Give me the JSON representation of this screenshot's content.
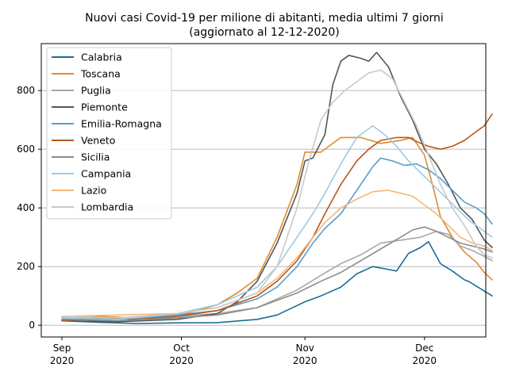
{
  "chart_data": {
    "type": "line",
    "title_lines": [
      "Nuovi casi Covid-19 per milione di abitanti, media ultimi 7 giorni",
      "(aggiornato al 12-12-2020)"
    ],
    "xlabel": "",
    "ylabel": "",
    "x_range": [
      "2020-09-01",
      "2020-12-12"
    ],
    "x_ticks": [
      {
        "date": "2020-09-01",
        "line1": "Sep",
        "line2": "2020"
      },
      {
        "date": "2020-10-01",
        "line1": "Oct",
        "line2": "2020"
      },
      {
        "date": "2020-11-01",
        "line1": "Nov",
        "line2": "2020"
      },
      {
        "date": "2020-12-01",
        "line1": "Dec",
        "line2": "2020"
      }
    ],
    "ylim": [
      -40,
      960
    ],
    "y_ticks": [
      0,
      200,
      400,
      600,
      800
    ],
    "grid": "horizontal",
    "legend_position": "top-left",
    "series": [
      {
        "name": "Calabria",
        "color": "#1a6e96",
        "points": [
          [
            "2020-09-01",
            15
          ],
          [
            "2020-09-10",
            10
          ],
          [
            "2020-09-20",
            6
          ],
          [
            "2020-09-30",
            8
          ],
          [
            "2020-10-10",
            9
          ],
          [
            "2020-10-20",
            20
          ],
          [
            "2020-10-25",
            35
          ],
          [
            "2020-11-01",
            80
          ],
          [
            "2020-11-05",
            100
          ],
          [
            "2020-11-10",
            130
          ],
          [
            "2020-11-14",
            175
          ],
          [
            "2020-11-18",
            200
          ],
          [
            "2020-11-22",
            190
          ],
          [
            "2020-11-24",
            185
          ],
          [
            "2020-11-27",
            245
          ],
          [
            "2020-11-30",
            265
          ],
          [
            "2020-12-02",
            285
          ],
          [
            "2020-12-03",
            260
          ],
          [
            "2020-12-05",
            210
          ],
          [
            "2020-12-08",
            185
          ],
          [
            "2020-12-11",
            155
          ],
          [
            "2020-12-12",
            150
          ],
          [
            "2020-12-15",
            125
          ],
          [
            "2020-12-18",
            100
          ]
        ]
      },
      {
        "name": "Toscana",
        "color": "#e08b2e",
        "points": [
          [
            "2020-09-01",
            20
          ],
          [
            "2020-09-10",
            30
          ],
          [
            "2020-09-20",
            25
          ],
          [
            "2020-09-30",
            35
          ],
          [
            "2020-10-05",
            50
          ],
          [
            "2020-10-10",
            70
          ],
          [
            "2020-10-15",
            110
          ],
          [
            "2020-10-20",
            160
          ],
          [
            "2020-10-25",
            300
          ],
          [
            "2020-10-30",
            480
          ],
          [
            "2020-11-01",
            590
          ],
          [
            "2020-11-05",
            590
          ],
          [
            "2020-11-10",
            640
          ],
          [
            "2020-11-15",
            640
          ],
          [
            "2020-11-20",
            620
          ],
          [
            "2020-11-25",
            630
          ],
          [
            "2020-11-28",
            640
          ],
          [
            "2020-12-01",
            580
          ],
          [
            "2020-12-03",
            480
          ],
          [
            "2020-12-05",
            370
          ],
          [
            "2020-12-08",
            300
          ],
          [
            "2020-12-11",
            250
          ],
          [
            "2020-12-14",
            215
          ],
          [
            "2020-12-16",
            180
          ],
          [
            "2020-12-18",
            155
          ]
        ]
      },
      {
        "name": "Puglia",
        "color": "#a8a8a8",
        "points": [
          [
            "2020-09-01",
            25
          ],
          [
            "2020-09-15",
            20
          ],
          [
            "2020-09-30",
            30
          ],
          [
            "2020-10-10",
            40
          ],
          [
            "2020-10-20",
            60
          ],
          [
            "2020-10-30",
            120
          ],
          [
            "2020-11-05",
            170
          ],
          [
            "2020-11-10",
            210
          ],
          [
            "2020-11-15",
            240
          ],
          [
            "2020-11-20",
            280
          ],
          [
            "2020-11-25",
            290
          ],
          [
            "2020-11-30",
            300
          ],
          [
            "2020-12-04",
            320
          ],
          [
            "2020-12-07",
            310
          ],
          [
            "2020-12-10",
            270
          ],
          [
            "2020-12-13",
            255
          ],
          [
            "2020-12-16",
            235
          ],
          [
            "2020-12-18",
            220
          ]
        ]
      },
      {
        "name": "Piemonte",
        "color": "#555555",
        "points": [
          [
            "2020-09-01",
            15
          ],
          [
            "2020-09-15",
            12
          ],
          [
            "2020-09-30",
            20
          ],
          [
            "2020-10-05",
            30
          ],
          [
            "2020-10-10",
            40
          ],
          [
            "2020-10-15",
            80
          ],
          [
            "2020-10-20",
            150
          ],
          [
            "2020-10-25",
            280
          ],
          [
            "2020-10-30",
            450
          ],
          [
            "2020-11-01",
            560
          ],
          [
            "2020-11-03",
            570
          ],
          [
            "2020-11-06",
            650
          ],
          [
            "2020-11-08",
            820
          ],
          [
            "2020-11-10",
            900
          ],
          [
            "2020-11-12",
            920
          ],
          [
            "2020-11-15",
            910
          ],
          [
            "2020-11-17",
            900
          ],
          [
            "2020-11-19",
            930
          ],
          [
            "2020-11-22",
            880
          ],
          [
            "2020-11-25",
            780
          ],
          [
            "2020-11-28",
            700
          ],
          [
            "2020-12-01",
            600
          ],
          [
            "2020-12-04",
            550
          ],
          [
            "2020-12-07",
            480
          ],
          [
            "2020-12-10",
            400
          ],
          [
            "2020-12-13",
            360
          ],
          [
            "2020-12-16",
            290
          ],
          [
            "2020-12-18",
            265
          ]
        ]
      },
      {
        "name": "Emilia-Romagna",
        "color": "#5a9ec9",
        "points": [
          [
            "2020-09-01",
            20
          ],
          [
            "2020-09-15",
            20
          ],
          [
            "2020-09-30",
            35
          ],
          [
            "2020-10-10",
            50
          ],
          [
            "2020-10-20",
            90
          ],
          [
            "2020-10-25",
            130
          ],
          [
            "2020-10-30",
            200
          ],
          [
            "2020-11-03",
            280
          ],
          [
            "2020-11-06",
            330
          ],
          [
            "2020-11-10",
            380
          ],
          [
            "2020-11-14",
            460
          ],
          [
            "2020-11-18",
            540
          ],
          [
            "2020-11-20",
            570
          ],
          [
            "2020-11-23",
            560
          ],
          [
            "2020-11-26",
            545
          ],
          [
            "2020-11-29",
            550
          ],
          [
            "2020-12-02",
            530
          ],
          [
            "2020-12-05",
            500
          ],
          [
            "2020-12-08",
            460
          ],
          [
            "2020-12-11",
            420
          ],
          [
            "2020-12-14",
            400
          ],
          [
            "2020-12-16",
            380
          ],
          [
            "2020-12-18",
            345
          ]
        ]
      },
      {
        "name": "Veneto",
        "color": "#b8571a",
        "points": [
          [
            "2020-09-01",
            15
          ],
          [
            "2020-09-10",
            25
          ],
          [
            "2020-09-20",
            20
          ],
          [
            "2020-09-30",
            30
          ],
          [
            "2020-10-10",
            50
          ],
          [
            "2020-10-20",
            100
          ],
          [
            "2020-10-25",
            150
          ],
          [
            "2020-10-30",
            220
          ],
          [
            "2020-11-03",
            300
          ],
          [
            "2020-11-06",
            380
          ],
          [
            "2020-11-10",
            480
          ],
          [
            "2020-11-14",
            560
          ],
          [
            "2020-11-17",
            600
          ],
          [
            "2020-11-20",
            630
          ],
          [
            "2020-11-24",
            640
          ],
          [
            "2020-11-27",
            640
          ],
          [
            "2020-11-30",
            620
          ],
          [
            "2020-12-02",
            610
          ],
          [
            "2020-12-05",
            600
          ],
          [
            "2020-12-08",
            610
          ],
          [
            "2020-12-11",
            630
          ],
          [
            "2020-12-14",
            660
          ],
          [
            "2020-12-16",
            680
          ],
          [
            "2020-12-18",
            720
          ]
        ]
      },
      {
        "name": "Sicilia",
        "color": "#8c8c8c",
        "points": [
          [
            "2020-09-01",
            20
          ],
          [
            "2020-09-15",
            15
          ],
          [
            "2020-09-30",
            25
          ],
          [
            "2020-10-10",
            35
          ],
          [
            "2020-10-20",
            60
          ],
          [
            "2020-10-30",
            110
          ],
          [
            "2020-11-05",
            150
          ],
          [
            "2020-11-10",
            180
          ],
          [
            "2020-11-15",
            220
          ],
          [
            "2020-11-20",
            260
          ],
          [
            "2020-11-25",
            300
          ],
          [
            "2020-11-28",
            325
          ],
          [
            "2020-12-01",
            335
          ],
          [
            "2020-12-04",
            320
          ],
          [
            "2020-12-07",
            300
          ],
          [
            "2020-12-10",
            280
          ],
          [
            "2020-12-13",
            270
          ],
          [
            "2020-12-16",
            260
          ],
          [
            "2020-12-18",
            250
          ]
        ]
      },
      {
        "name": "Campania",
        "color": "#9ecae1",
        "points": [
          [
            "2020-09-01",
            25
          ],
          [
            "2020-09-15",
            20
          ],
          [
            "2020-09-30",
            40
          ],
          [
            "2020-10-10",
            70
          ],
          [
            "2020-10-20",
            130
          ],
          [
            "2020-10-25",
            200
          ],
          [
            "2020-10-30",
            300
          ],
          [
            "2020-11-03",
            380
          ],
          [
            "2020-11-06",
            450
          ],
          [
            "2020-11-10",
            550
          ],
          [
            "2020-11-14",
            640
          ],
          [
            "2020-11-18",
            680
          ],
          [
            "2020-11-21",
            650
          ],
          [
            "2020-11-24",
            610
          ],
          [
            "2020-11-27",
            560
          ],
          [
            "2020-11-30",
            520
          ],
          [
            "2020-12-03",
            480
          ],
          [
            "2020-12-06",
            440
          ],
          [
            "2020-12-09",
            400
          ],
          [
            "2020-12-12",
            360
          ],
          [
            "2020-12-15",
            330
          ],
          [
            "2020-12-18",
            300
          ]
        ]
      },
      {
        "name": "Lazio",
        "color": "#f2b77a",
        "points": [
          [
            "2020-09-01",
            30
          ],
          [
            "2020-09-15",
            35
          ],
          [
            "2020-09-30",
            40
          ],
          [
            "2020-10-10",
            60
          ],
          [
            "2020-10-20",
            110
          ],
          [
            "2020-10-25",
            160
          ],
          [
            "2020-10-30",
            230
          ],
          [
            "2020-11-03",
            300
          ],
          [
            "2020-11-06",
            350
          ],
          [
            "2020-11-10",
            400
          ],
          [
            "2020-11-14",
            430
          ],
          [
            "2020-11-18",
            455
          ],
          [
            "2020-11-22",
            460
          ],
          [
            "2020-11-25",
            450
          ],
          [
            "2020-11-28",
            440
          ],
          [
            "2020-12-01",
            410
          ],
          [
            "2020-12-04",
            380
          ],
          [
            "2020-12-07",
            340
          ],
          [
            "2020-12-10",
            300
          ],
          [
            "2020-12-13",
            280
          ],
          [
            "2020-12-16",
            270
          ],
          [
            "2020-12-18",
            255
          ]
        ]
      },
      {
        "name": "Lombardia",
        "color": "#c9c9c9",
        "points": [
          [
            "2020-09-01",
            30
          ],
          [
            "2020-09-15",
            25
          ],
          [
            "2020-09-30",
            40
          ],
          [
            "2020-10-10",
            60
          ],
          [
            "2020-10-20",
            110
          ],
          [
            "2020-10-25",
            200
          ],
          [
            "2020-10-30",
            400
          ],
          [
            "2020-11-02",
            560
          ],
          [
            "2020-11-05",
            700
          ],
          [
            "2020-11-08",
            760
          ],
          [
            "2020-11-11",
            800
          ],
          [
            "2020-11-14",
            830
          ],
          [
            "2020-11-17",
            860
          ],
          [
            "2020-11-20",
            870
          ],
          [
            "2020-11-23",
            840
          ],
          [
            "2020-11-26",
            760
          ],
          [
            "2020-11-29",
            680
          ],
          [
            "2020-12-02",
            580
          ],
          [
            "2020-12-05",
            480
          ],
          [
            "2020-12-08",
            400
          ],
          [
            "2020-12-11",
            340
          ],
          [
            "2020-12-14",
            270
          ],
          [
            "2020-12-16",
            240
          ],
          [
            "2020-12-18",
            230
          ]
        ]
      }
    ]
  }
}
